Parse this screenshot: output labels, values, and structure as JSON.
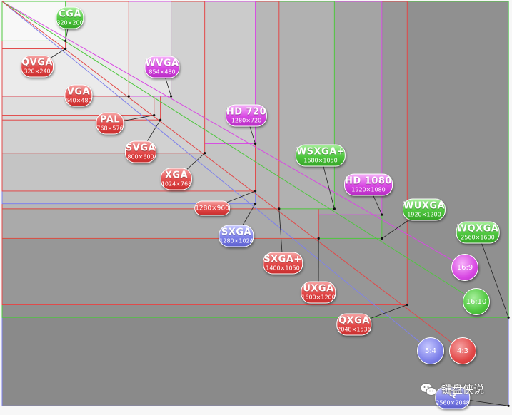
{
  "labels": [
    {
      "id": "cga",
      "name": "CGA",
      "res": "320×200",
      "color": "green"
    },
    {
      "id": "qvga",
      "name": "QVGA",
      "res": "320×240",
      "color": "red"
    },
    {
      "id": "wvga",
      "name": "WVGA",
      "res": "854×480",
      "color": "purple"
    },
    {
      "id": "vga",
      "name": "VGA",
      "res": "640×480",
      "color": "red"
    },
    {
      "id": "pal",
      "name": "PAL",
      "res": "768×576",
      "color": "red"
    },
    {
      "id": "hd720",
      "name": "HD 720",
      "res": "1280×720",
      "color": "purple"
    },
    {
      "id": "svga",
      "name": "SVGA",
      "res": "800×600",
      "color": "red"
    },
    {
      "id": "wsxga",
      "name": "WSXGA+",
      "res": "1680×1050",
      "color": "green"
    },
    {
      "id": "xga",
      "name": "XGA",
      "res": "1024×768",
      "color": "red"
    },
    {
      "id": "hd1080",
      "name": "HD 1080",
      "res": "1920×1080",
      "color": "purple"
    },
    {
      "id": "r1280x960",
      "name": "",
      "res": "1280×960",
      "color": "red"
    },
    {
      "id": "wuxga",
      "name": "WUXGA",
      "res": "1920×1200",
      "color": "green"
    },
    {
      "id": "sxga",
      "name": "SXGA",
      "res": "1280×1024",
      "color": "blue"
    },
    {
      "id": "wqxga",
      "name": "WQXGA",
      "res": "2560×1600",
      "color": "green"
    },
    {
      "id": "sxgaplus",
      "name": "SXGA+",
      "res": "1400×1050",
      "color": "red"
    },
    {
      "id": "uxga",
      "name": "UXGA",
      "res": "1600×1200",
      "color": "red"
    },
    {
      "id": "qxga",
      "name": "QXGA",
      "res": "2048×1536",
      "color": "red"
    },
    {
      "id": "qsxga",
      "name": "Q",
      "res": "2560×2048",
      "color": "blue"
    }
  ],
  "ratios": [
    {
      "id": "r16-9",
      "label": "16:9",
      "color": "purple"
    },
    {
      "id": "r16-10",
      "label": "16:10",
      "color": "green"
    },
    {
      "id": "r5-4",
      "label": "5:4",
      "color": "blue"
    },
    {
      "id": "r4-3",
      "label": "4:3",
      "color": "red"
    }
  ],
  "colors": {
    "red": "#e24848",
    "green": "#4fc73f",
    "purple": "#d848e3",
    "blue": "#7f82ea"
  },
  "watermark": {
    "text": "键盘侠说",
    "icon": "wechat-icon"
  }
}
